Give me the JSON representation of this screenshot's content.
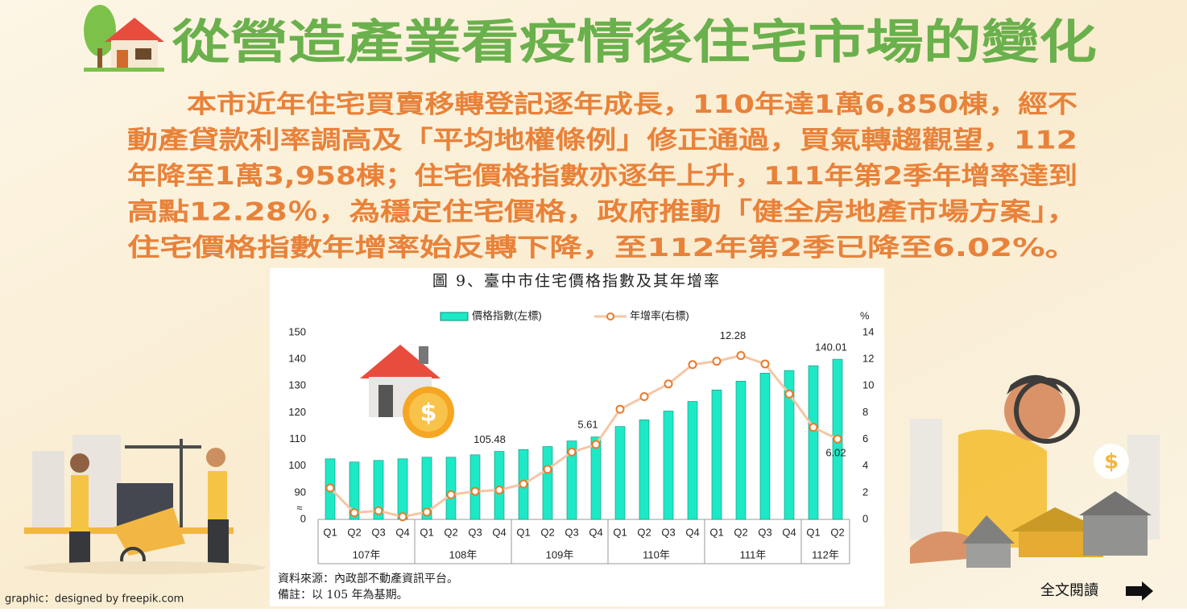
{
  "title": "從營造產業看疫情後住宅市場的變化",
  "paragraph": [
    "本市近年住宅買賣移轉登記逐年成長，110年達1萬6,850棟，經不",
    "動產貸款利率調高及「平均地權條例」修正通過，買氣轉趨觀望，112",
    "年降至1萬3,958棟；住宅價格指數亦逐年上升，111年第2季年增率達到",
    "高點12.28％，為穩定住宅價格，政府推動「健全房地產市場方案」，",
    "住宅價格指數年增率始反轉下降，至112年第2季已降至6.02%。"
  ],
  "chart_data": {
    "type": "bar_line",
    "title": "圖 9、臺中市住宅價格指數及其年增率",
    "categories": [
      "Q1",
      "Q2",
      "Q3",
      "Q4",
      "Q1",
      "Q2",
      "Q3",
      "Q4",
      "Q1",
      "Q2",
      "Q3",
      "Q4",
      "Q1",
      "Q2",
      "Q3",
      "Q4",
      "Q1",
      "Q2",
      "Q3",
      "Q4",
      "Q1",
      "Q2"
    ],
    "category_groups": [
      {
        "name": "107年",
        "span": 4
      },
      {
        "name": "108年",
        "span": 4
      },
      {
        "name": "109年",
        "span": 4
      },
      {
        "name": "110年",
        "span": 4
      },
      {
        "name": "111年",
        "span": 4
      },
      {
        "name": "112年",
        "span": 2
      }
    ],
    "series": [
      {
        "name": "價格指數(左標)",
        "color": "#1de9c6",
        "kind": "bar",
        "values": [
          102.7,
          101.5,
          102.1,
          102.7,
          103.3,
          103.3,
          104.2,
          105.48,
          106.2,
          107.3,
          109.4,
          110.9,
          114.8,
          117.3,
          120.6,
          124.2,
          128.5,
          131.8,
          134.8,
          135.8,
          137.6,
          140.01
        ],
        "value_labels": [
          null,
          null,
          null,
          null,
          null,
          null,
          null,
          "105.48",
          null,
          null,
          null,
          null,
          null,
          null,
          null,
          null,
          null,
          null,
          null,
          null,
          null,
          "140.01"
        ]
      },
      {
        "name": "年增率(右標)",
        "color": "#e97a2a",
        "kind": "line",
        "axis": "y2",
        "values": [
          2.35,
          0.5,
          0.65,
          0.2,
          0.55,
          1.85,
          2.1,
          2.2,
          2.65,
          3.75,
          5.05,
          5.61,
          8.25,
          9.2,
          10.15,
          11.6,
          11.85,
          12.28,
          11.65,
          9.4,
          6.9,
          6.02
        ],
        "value_labels": [
          null,
          null,
          null,
          null,
          null,
          null,
          null,
          null,
          null,
          null,
          null,
          "5.61",
          null,
          null,
          null,
          null,
          null,
          "12.28",
          null,
          null,
          null,
          "6.02"
        ]
      }
    ],
    "ylim": [
      80,
      150
    ],
    "yticks": [
      {
        "value": 80,
        "label": "0"
      },
      90,
      100,
      110,
      120,
      130,
      140,
      150
    ],
    "y2lim": [
      0,
      14
    ],
    "y2ticks": [
      0,
      2,
      4,
      6,
      8,
      10,
      12,
      14
    ],
    "y2_unit": "%",
    "axis_break": "≈",
    "source": "資料來源：內政部不動產資訊平台。",
    "note": "備註：以 105 年為基期。"
  },
  "credit": "graphic：designed by freepik.com",
  "read_more": "全文閱讀"
}
